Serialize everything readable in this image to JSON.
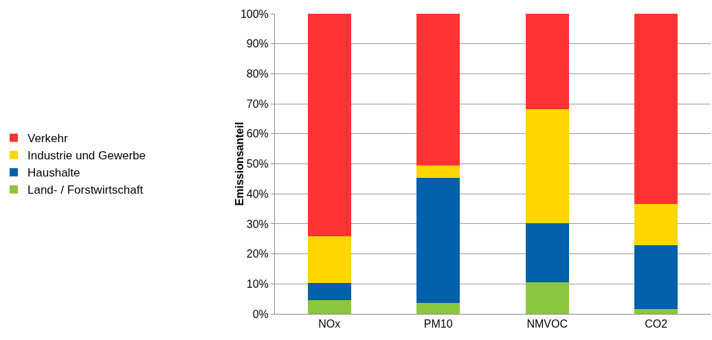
{
  "chart_data": {
    "type": "bar",
    "stacked": true,
    "ylabel": "Emissionsanteil",
    "categories": [
      "NOx",
      "PM10",
      "NMVOC",
      "CO2"
    ],
    "series": [
      {
        "name": "Land- / Forstwirtschaft",
        "color": "#8cc63f",
        "values": [
          4.6,
          3.7,
          10.5,
          1.6
        ]
      },
      {
        "name": "Haushalte",
        "color": "#0060aa",
        "values": [
          5.7,
          41.7,
          19.8,
          21.3
        ]
      },
      {
        "name": "Industrie und Gewerbe",
        "color": "#ffd700",
        "values": [
          15.6,
          4.1,
          38.0,
          13.8
        ]
      },
      {
        "name": "Verkehr",
        "color": "#ff3333",
        "values": [
          74.1,
          50.5,
          31.7,
          63.3
        ]
      }
    ],
    "ylim": [
      0,
      100
    ],
    "yticks": [
      {
        "value": 0,
        "label": "0%"
      },
      {
        "value": 10,
        "label": "10%"
      },
      {
        "value": 20,
        "label": "20%"
      },
      {
        "value": 30,
        "label": "30%"
      },
      {
        "value": 40,
        "label": "40%"
      },
      {
        "value": 50,
        "label": "50%"
      },
      {
        "value": 60,
        "label": "60%"
      },
      {
        "value": 70,
        "label": "70%"
      },
      {
        "value": 80,
        "label": "80%"
      },
      {
        "value": 90,
        "label": "90%"
      },
      {
        "value": 100,
        "label": "100%"
      }
    ],
    "grid": "y",
    "legend": "left"
  }
}
